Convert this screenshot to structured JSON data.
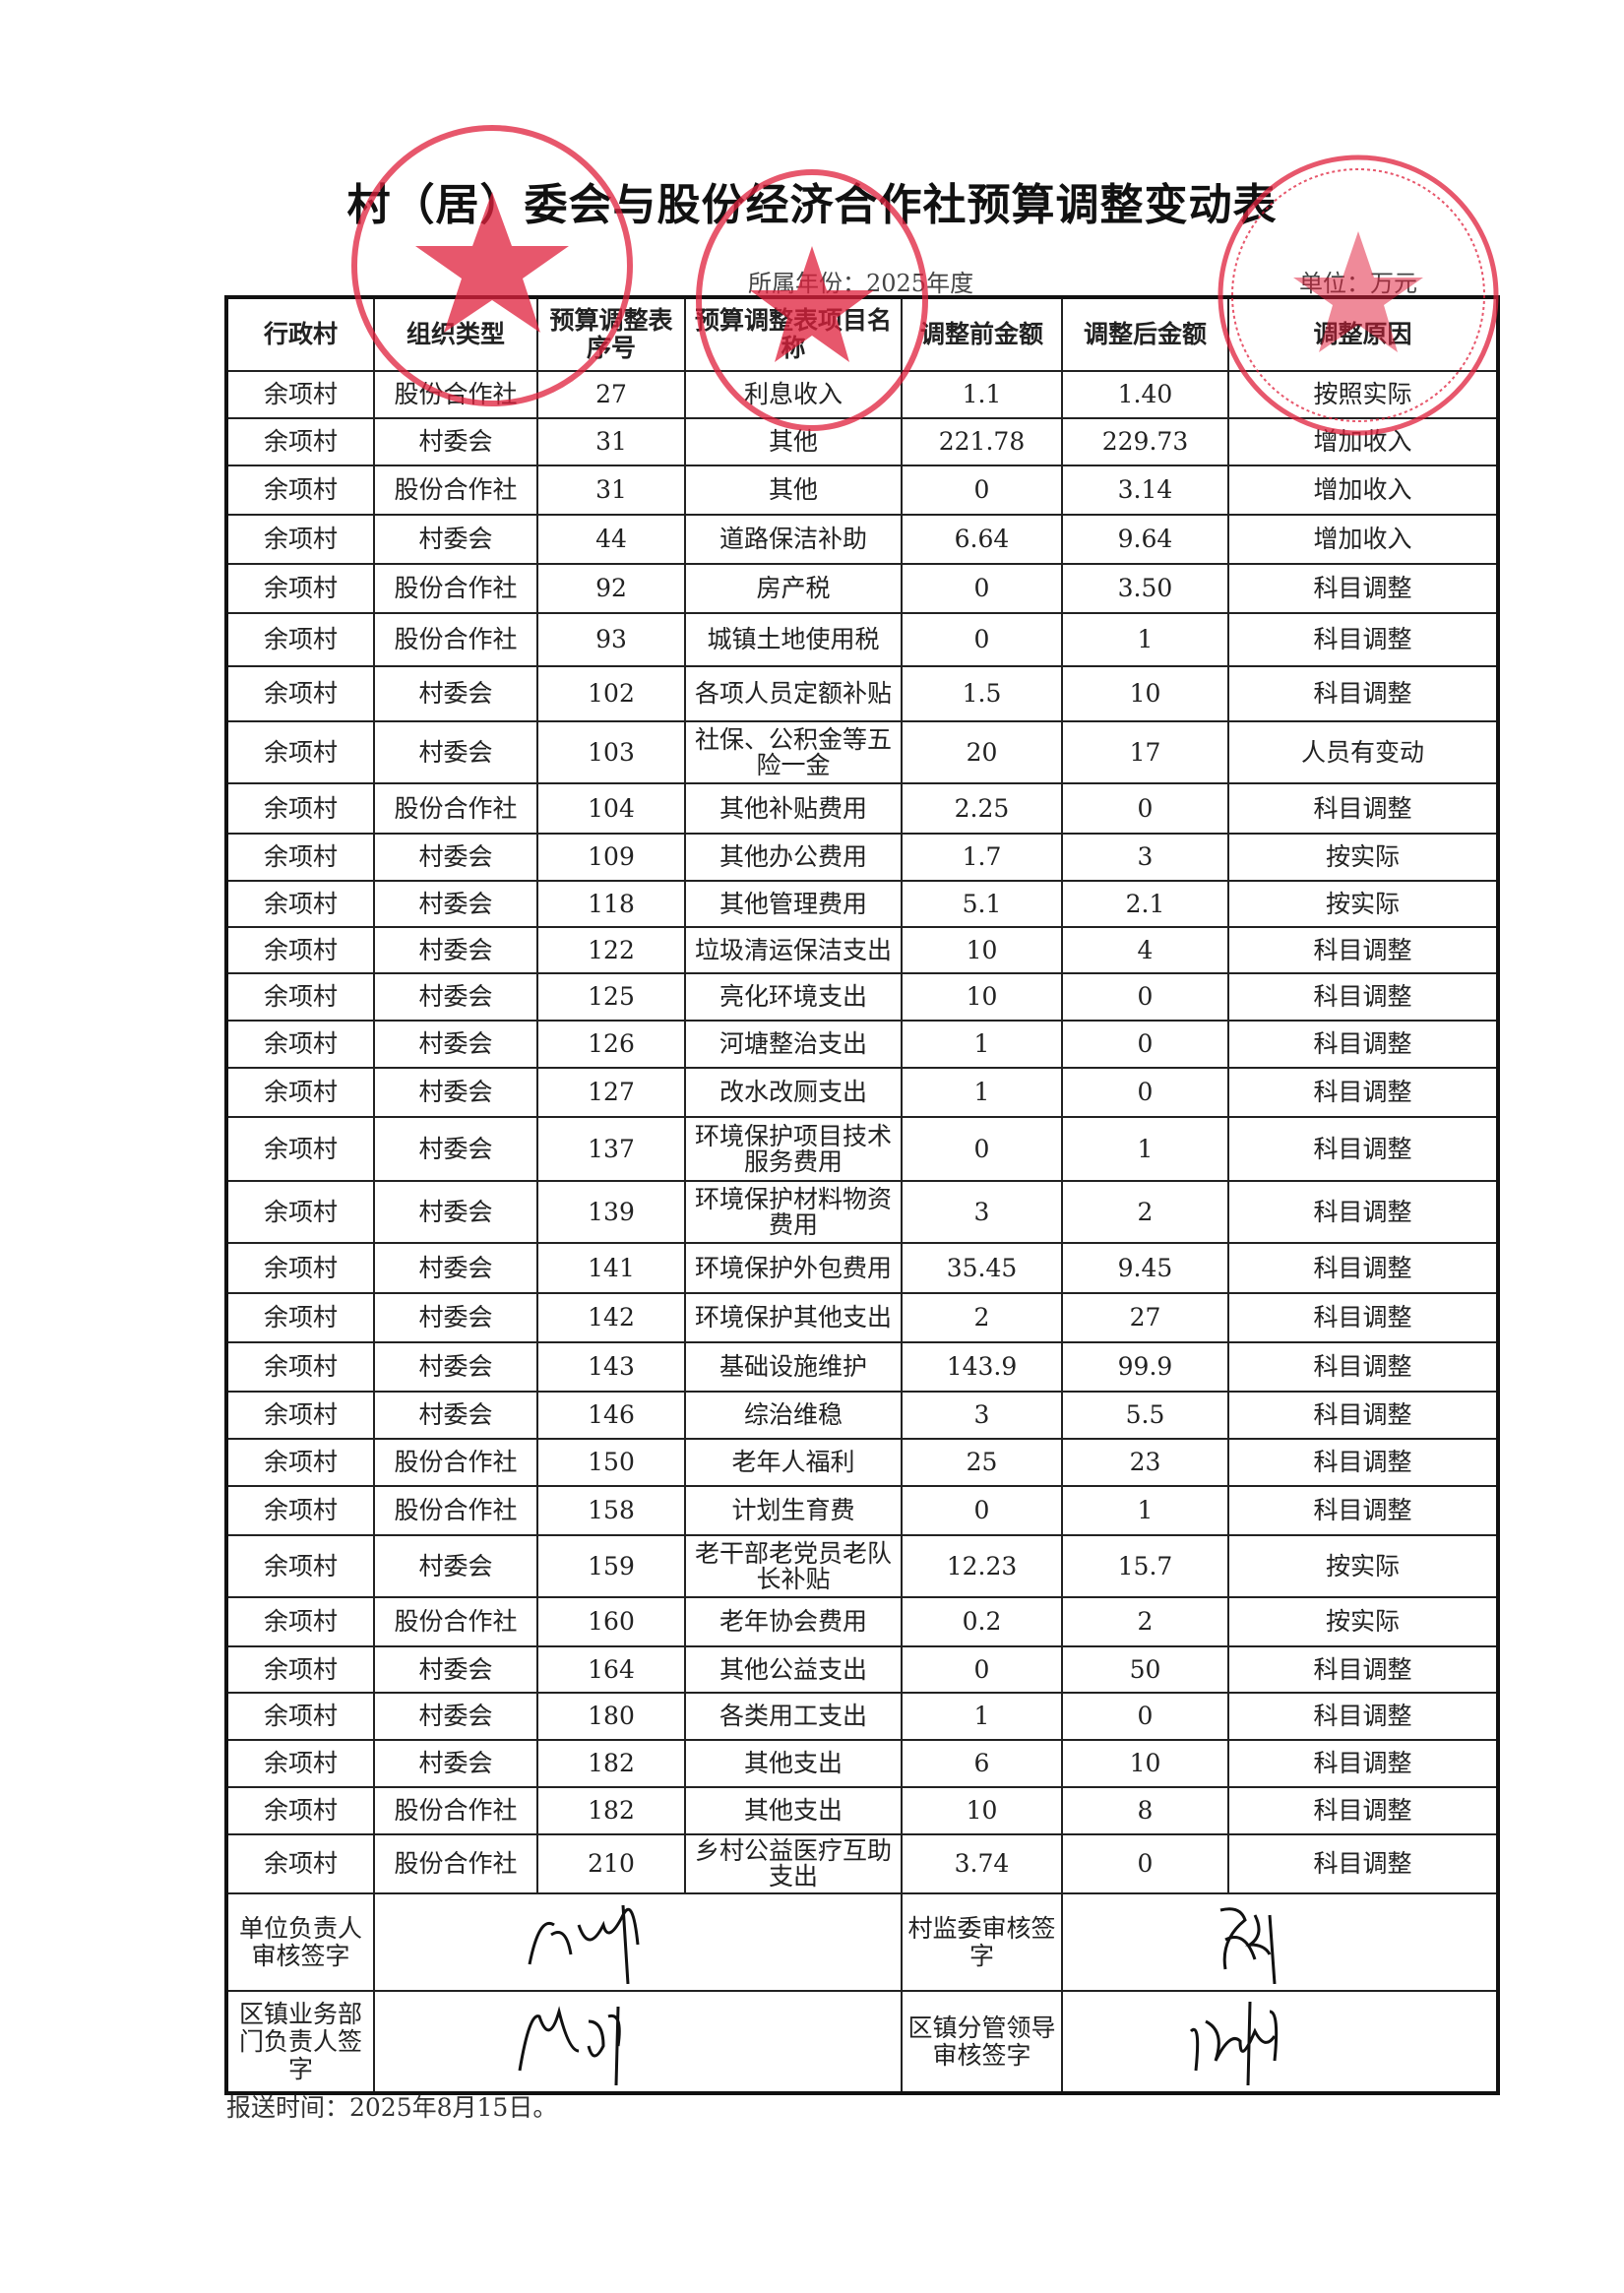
{
  "title": "村（居）委会与股份经济合作社预算调整变动表",
  "year_label": "所属年份：2025年度",
  "unit_label": "单位：万元",
  "headers": [
    "行政村",
    "组织类型",
    "预算调整表序号",
    "预算调整表项目名称",
    "调整前金额",
    "调整后金额",
    "调整原因"
  ],
  "rows": [
    [
      "余项村",
      "股份合作社",
      "27",
      "利息收入",
      "1.1",
      "1.40",
      "按照实际"
    ],
    [
      "余项村",
      "村委会",
      "31",
      "其他",
      "221.78",
      "229.73",
      "增加收入"
    ],
    [
      "余项村",
      "股份合作社",
      "31",
      "其他",
      "0",
      "3.14",
      "增加收入"
    ],
    [
      "余项村",
      "村委会",
      "44",
      "道路保洁补助",
      "6.64",
      "9.64",
      "增加收入"
    ],
    [
      "余项村",
      "股份合作社",
      "92",
      "房产税",
      "0",
      "3.50",
      "科目调整"
    ],
    [
      "余项村",
      "股份合作社",
      "93",
      "城镇土地使用税",
      "0",
      "1",
      "科目调整"
    ],
    [
      "余项村",
      "村委会",
      "102",
      "各项人员定额补贴",
      "1.5",
      "10",
      "科目调整"
    ],
    [
      "余项村",
      "村委会",
      "103",
      "社保、公积金等五险一金",
      "20",
      "17",
      "人员有变动"
    ],
    [
      "余项村",
      "股份合作社",
      "104",
      "其他补贴费用",
      "2.25",
      "0",
      "科目调整"
    ],
    [
      "余项村",
      "村委会",
      "109",
      "其他办公费用",
      "1.7",
      "3",
      "按实际"
    ],
    [
      "余项村",
      "村委会",
      "118",
      "其他管理费用",
      "5.1",
      "2.1",
      "按实际"
    ],
    [
      "余项村",
      "村委会",
      "122",
      "垃圾清运保洁支出",
      "10",
      "4",
      "科目调整"
    ],
    [
      "余项村",
      "村委会",
      "125",
      "亮化环境支出",
      "10",
      "0",
      "科目调整"
    ],
    [
      "余项村",
      "村委会",
      "126",
      "河塘整治支出",
      "1",
      "0",
      "科目调整"
    ],
    [
      "余项村",
      "村委会",
      "127",
      "改水改厕支出",
      "1",
      "0",
      "科目调整"
    ],
    [
      "余项村",
      "村委会",
      "137",
      "环境保护项目技术服务费用",
      "0",
      "1",
      "科目调整"
    ],
    [
      "余项村",
      "村委会",
      "139",
      "环境保护材料物资费用",
      "3",
      "2",
      "科目调整"
    ],
    [
      "余项村",
      "村委会",
      "141",
      "环境保护外包费用",
      "35.45",
      "9.45",
      "科目调整"
    ],
    [
      "余项村",
      "村委会",
      "142",
      "环境保护其他支出",
      "2",
      "27",
      "科目调整"
    ],
    [
      "余项村",
      "村委会",
      "143",
      "基础设施维护",
      "143.9",
      "99.9",
      "科目调整"
    ],
    [
      "余项村",
      "村委会",
      "146",
      "综治维稳",
      "3",
      "5.5",
      "科目调整"
    ],
    [
      "余项村",
      "股份合作社",
      "150",
      "老年人福利",
      "25",
      "23",
      "科目调整"
    ],
    [
      "余项村",
      "股份合作社",
      "158",
      "计划生育费",
      "0",
      "1",
      "科目调整"
    ],
    [
      "余项村",
      "村委会",
      "159",
      "老干部老党员老队长补贴",
      "12.23",
      "15.7",
      "按实际"
    ],
    [
      "余项村",
      "股份合作社",
      "160",
      "老年协会费用",
      "0.2",
      "2",
      "按实际"
    ],
    [
      "余项村",
      "村委会",
      "164",
      "其他公益支出",
      "0",
      "50",
      "科目调整"
    ],
    [
      "余项村",
      "村委会",
      "180",
      "各类用工支出",
      "1",
      "0",
      "科目调整"
    ],
    [
      "余项村",
      "村委会",
      "182",
      "其他支出",
      "6",
      "10",
      "科目调整"
    ],
    [
      "余项村",
      "股份合作社",
      "182",
      "其他支出",
      "10",
      "8",
      "科目调整"
    ],
    [
      "余项村",
      "股份合作社",
      "210",
      "乡村公益医疗互助支出",
      "3.74",
      "0",
      "科目调整"
    ]
  ],
  "signatures": {
    "unit_head_label": "单位负责人审核签字",
    "village_supervisor_label": "村监委审核签字",
    "town_dept_head_label": "区镇业务部门负责人签字",
    "town_leader_label": "区镇分管领导审核签字"
  },
  "footer": "报送时间：2025年8月15日。",
  "stamp_color": "#e0203c"
}
